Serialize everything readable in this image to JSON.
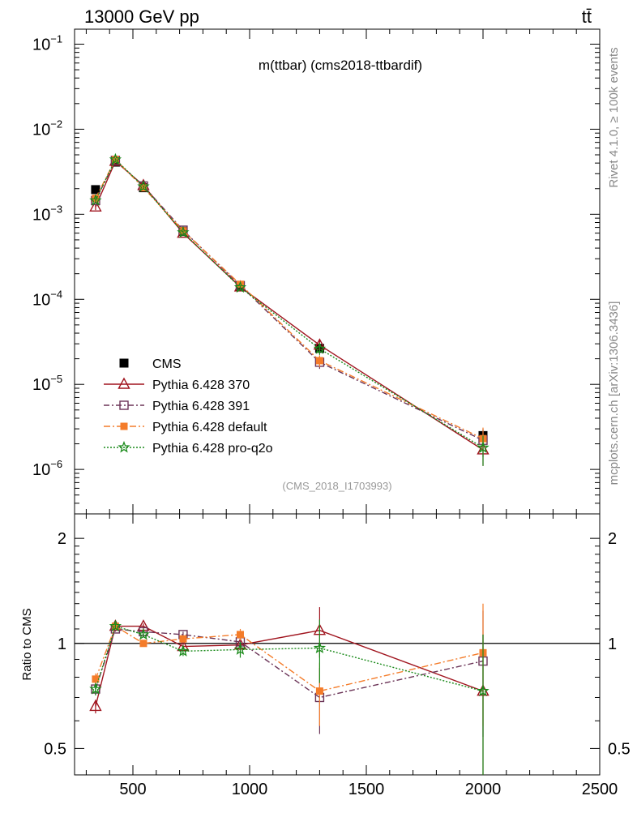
{
  "header": {
    "energy_label": "13000 GeV pp",
    "process_label": "tt̄"
  },
  "side_labels": {
    "rivet": "Rivet 4.1.0, ≥ 100k events",
    "source": "mcplots.cern.ch [arXiv:1306.3436]"
  },
  "colors": {
    "CMS": "#000000",
    "p370": "#a0141e",
    "p391": "#6b3457",
    "pdefault": "#f47c2a",
    "pq2o": "#1a8a1a"
  },
  "chart_data": [
    {
      "type": "line",
      "title": "m(ttbar) (cms2018-ttbardif)",
      "watermark": "(CMS_2018_I1703993)",
      "yscale": "log",
      "xlim": [
        250,
        2500
      ],
      "ylim": [
        3e-07,
        0.15
      ],
      "y_tick_labels": [
        "10^-1",
        "10^-2",
        "10^-3",
        "10^-4",
        "10^-5",
        "10^-6"
      ],
      "x": [
        340,
        425,
        545,
        715,
        960,
        1300,
        2000
      ],
      "legend_position": "center-left",
      "series": [
        {
          "name": "CMS",
          "key": "CMS",
          "marker": "filled-square",
          "values": [
            0.00195,
            0.0041,
            0.00205,
            0.00063,
            0.000143,
            2.65e-05,
            2.5e-06
          ],
          "errors": [
            0,
            0,
            0,
            0,
            0,
            1.5e-06,
            4e-07
          ]
        },
        {
          "name": "Pythia 6.428 370",
          "key": "p370",
          "marker": "open-triangle",
          "values": [
            0.00122,
            0.0042,
            0.00218,
            0.0006,
            0.00014,
            2.9e-05,
            1.7e-06
          ],
          "errors": [
            0.0001,
            0.00015,
            7e-05,
            3e-05,
            8e-06,
            4e-06,
            6e-07
          ]
        },
        {
          "name": "Pythia 6.428 391",
          "key": "p391",
          "marker": "open-square",
          "values": [
            0.00145,
            0.0043,
            0.00215,
            0.00065,
            0.000145,
            1.82e-05,
            2.2e-06
          ],
          "errors": [
            0.0001,
            0.00015,
            7e-05,
            3e-05,
            8e-06,
            3e-06,
            8e-07
          ]
        },
        {
          "name": "Pythia 6.428 default",
          "key": "pdefault",
          "marker": "filled-square",
          "values": [
            0.00154,
            0.0044,
            0.00205,
            0.00064,
            0.00015,
            1.9e-05,
            2.3e-06
          ],
          "errors": [
            0.0001,
            0.00015,
            7e-05,
            3e-05,
            8e-06,
            3e-06,
            8e-07
          ]
        },
        {
          "name": "Pythia 6.428 pro-q2o",
          "key": "pq2o",
          "marker": "star",
          "values": [
            0.00145,
            0.0044,
            0.00212,
            0.00061,
            0.000138,
            2.62e-05,
            1.8e-06
          ],
          "errors": [
            0.0001,
            0.00015,
            7e-05,
            3e-05,
            8e-06,
            4e-06,
            7e-07
          ]
        }
      ]
    },
    {
      "type": "line",
      "ylabel": "Ratio to CMS",
      "xlabel": "",
      "yscale": "log",
      "xlim": [
        250,
        2500
      ],
      "ylim": [
        0.42,
        2.35
      ],
      "y_tick_labels": [
        "0.5",
        "1",
        "2"
      ],
      "x_tick_labels": [
        "500",
        "1000",
        "1500",
        "2000",
        "2500"
      ],
      "reference_line": 1,
      "x": [
        340,
        425,
        545,
        715,
        960,
        1300,
        2000
      ],
      "series": [
        {
          "name": "Pythia 6.428 370",
          "key": "p370",
          "marker": "open-triangle",
          "values": [
            0.66,
            1.12,
            1.12,
            0.98,
            0.99,
            1.09,
            0.73
          ],
          "errors": [
            0.03,
            0.02,
            0.02,
            0.02,
            0.03,
            0.18,
            0.33
          ]
        },
        {
          "name": "Pythia 6.428 391",
          "key": "p391",
          "marker": "open-square",
          "values": [
            0.74,
            1.1,
            1.08,
            1.06,
            1.01,
            0.7,
            0.89
          ],
          "errors": [
            0.03,
            0.02,
            0.02,
            0.02,
            0.03,
            0.15,
            0.35
          ]
        },
        {
          "name": "Pythia 6.428 default",
          "key": "pdefault",
          "marker": "filled-square",
          "values": [
            0.79,
            1.12,
            1.0,
            1.03,
            1.06,
            0.73,
            0.94
          ],
          "errors": [
            0.03,
            0.02,
            0.02,
            0.02,
            0.04,
            0.15,
            0.36
          ]
        },
        {
          "name": "Pythia 6.428 pro-q2o",
          "key": "pq2o",
          "marker": "star",
          "values": [
            0.74,
            1.12,
            1.06,
            0.95,
            0.96,
            0.97,
            0.73
          ],
          "errors": [
            0.03,
            0.02,
            0.02,
            0.03,
            0.05,
            0.2,
            0.33
          ]
        }
      ]
    }
  ]
}
